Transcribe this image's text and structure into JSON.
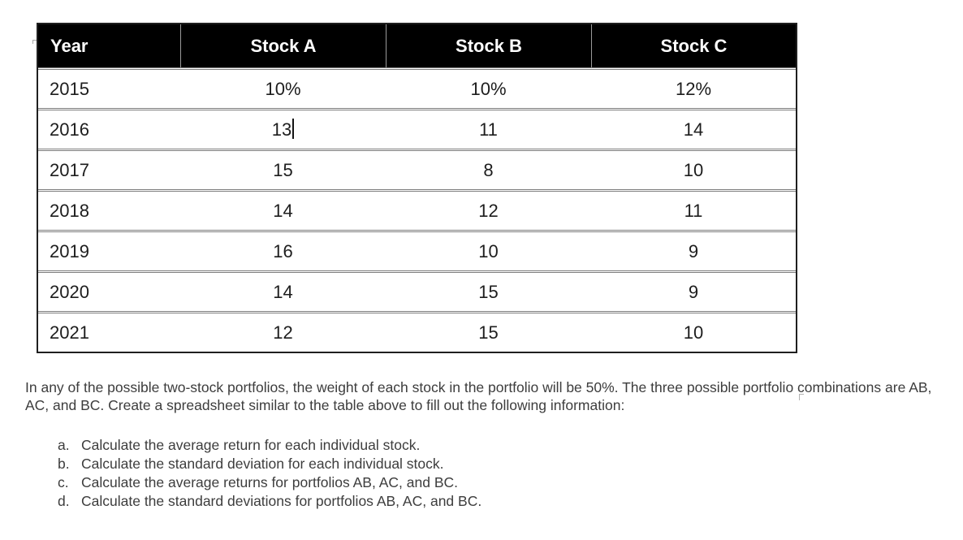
{
  "colors": {
    "header_bg": "#000000",
    "header_text": "#ffffff",
    "body_text": "#1d1d1d",
    "paragraph_text": "#3d3d3d",
    "outer_border": "#1f1f1f",
    "row_divider": "#7d7d7d",
    "header_divider": "#9a9a9a"
  },
  "table": {
    "headers": {
      "year": "Year",
      "stock_a": "Stock A",
      "stock_b": "Stock B",
      "stock_c": "Stock C"
    },
    "rows": [
      {
        "year": "2015",
        "a": "10%",
        "b": "10%",
        "c": "12%"
      },
      {
        "year": "2016",
        "a": "13",
        "b": "11",
        "c": "14"
      },
      {
        "year": "2017",
        "a": "15",
        "b": "8",
        "c": "10"
      },
      {
        "year": "2018",
        "a": "14",
        "b": "12",
        "c": "11"
      },
      {
        "year": "2019",
        "a": "16",
        "b": "10",
        "c": "9"
      },
      {
        "year": "2020",
        "a": "14",
        "b": "15",
        "c": "9"
      },
      {
        "year": "2021",
        "a": "12",
        "b": "15",
        "c": "10"
      }
    ],
    "caret_cell": {
      "row": "2016",
      "column": "Stock A"
    }
  },
  "paragraph": {
    "text": "In any of the possible two-stock portfolios, the weight of each stock in the portfolio will be 50%. The three possible portfolio combinations are AB, AC, and BC. Create a spreadsheet similar to the table above to fill out the following information:"
  },
  "list": {
    "items": [
      {
        "marker": "a.",
        "text": "Calculate the average return for each individual stock."
      },
      {
        "marker": "b.",
        "text": "Calculate the standard deviation for each individual stock."
      },
      {
        "marker": "c.",
        "text": "Calculate the average returns for portfolios AB, AC, and BC."
      },
      {
        "marker": "d.",
        "text": "Calculate the standard deviations for portfolios AB, AC, and BC."
      }
    ]
  }
}
